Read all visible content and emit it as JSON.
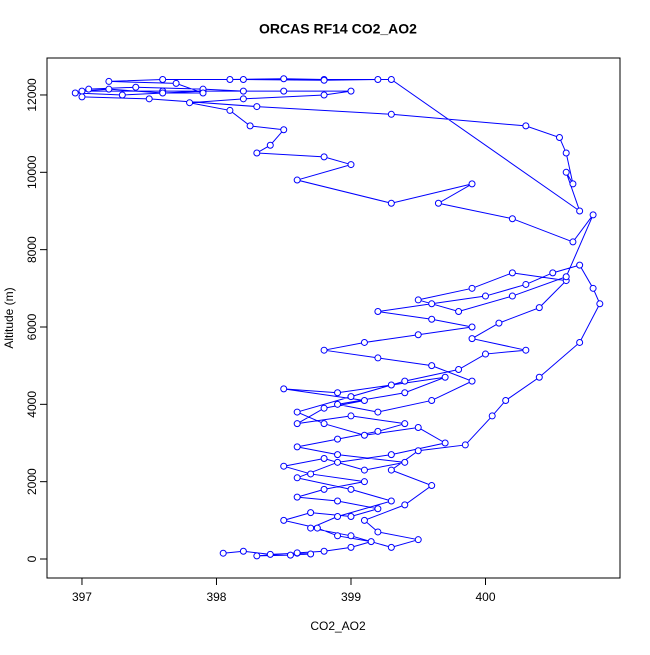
{
  "chart_data": {
    "type": "line",
    "title": "ORCAS RF14 CO2_AO2",
    "x_label": "CO2_AO2",
    "y_label": "Altitude (m)",
    "markers": "circle",
    "color": "#0000ff",
    "x": [
      398.05,
      398.2,
      398.4,
      398.6,
      398.7,
      398.55,
      398.3,
      398.6,
      398.8,
      399.0,
      399.15,
      398.9,
      398.75,
      398.5,
      398.7,
      399.0,
      399.2,
      398.9,
      398.6,
      398.8,
      399.1,
      398.7,
      398.5,
      398.8,
      399.1,
      399.4,
      398.9,
      398.6,
      398.9,
      399.2,
      399.4,
      399.0,
      398.6,
      398.8,
      399.1,
      398.5,
      398.9,
      399.3,
      399.7,
      399.4,
      398.9,
      399.2,
      399.6,
      399.9,
      399.6,
      399.2,
      398.8,
      399.1,
      399.5,
      399.9,
      399.6,
      399.2,
      399.6,
      400.0,
      400.3,
      400.5,
      400.7,
      400.8,
      400.85,
      400.7,
      400.4,
      400.15,
      400.05,
      399.85,
      399.5,
      399.3,
      399.6,
      399.4,
      399.1,
      399.2,
      399.5,
      399.3,
      399.0,
      398.7,
      398.9,
      399.3,
      399.0,
      398.6,
      398.9,
      399.3,
      399.7,
      399.5,
      399.1,
      398.8,
      398.6,
      399.0,
      399.4,
      399.8,
      400.0,
      400.3,
      399.9,
      400.1,
      400.4,
      400.6,
      400.2,
      399.9,
      399.5,
      399.8,
      400.2,
      400.6,
      400.8,
      400.65,
      400.2,
      399.65,
      399.9,
      399.3,
      398.6,
      399.0,
      398.8,
      398.3,
      398.4,
      398.5,
      398.25,
      398.1,
      397.8,
      398.2,
      398.8,
      399.0,
      398.5,
      397.9,
      397.3,
      396.95,
      397.05,
      397.4,
      397.9,
      398.2,
      397.6,
      397.0,
      397.2,
      397.6,
      397.9,
      397.7,
      397.2,
      397.6,
      398.1,
      398.5,
      398.8,
      399.2,
      398.8,
      398.2,
      399.3,
      400.7,
      400.6,
      400.65,
      400.6,
      400.55,
      400.3,
      399.3,
      398.3,
      397.5,
      397.0
    ],
    "series": [
      {
        "name": "CO2_AO2",
        "color": "#0000ff",
        "values": [
          150,
          200,
          120,
          150,
          130,
          100,
          80,
          160,
          200,
          300,
          450,
          600,
          800,
          1000,
          1200,
          1100,
          1300,
          1500,
          1600,
          1800,
          2000,
          2200,
          2400,
          2600,
          2300,
          2500,
          2700,
          2900,
          3100,
          3300,
          3500,
          3700,
          3500,
          3900,
          4100,
          4400,
          4300,
          4500,
          4700,
          4300,
          4000,
          3800,
          4100,
          4600,
          5000,
          5200,
          5400,
          5600,
          5800,
          6000,
          6200,
          6400,
          6600,
          6800,
          7100,
          7400,
          7600,
          7000,
          6600,
          5600,
          4700,
          4100,
          3700,
          2950,
          2800,
          2300,
          1900,
          1400,
          1000,
          700,
          500,
          300,
          600,
          800,
          1100,
          1500,
          1800,
          2100,
          2500,
          2700,
          3000,
          3400,
          3200,
          3500,
          3800,
          4200,
          4600,
          4900,
          5300,
          5400,
          5700,
          6100,
          6500,
          7200,
          7400,
          7000,
          6700,
          6400,
          6800,
          7300,
          8900,
          8200,
          8800,
          9200,
          9700,
          9200,
          9800,
          10200,
          10400,
          10500,
          10700,
          11100,
          11200,
          11600,
          11800,
          11900,
          12000,
          12100,
          12100,
          12100,
          12000,
          12050,
          12150,
          12200,
          12150,
          12100,
          12100,
          12100,
          12150,
          12050,
          12050,
          12300,
          12350,
          12400,
          12400,
          12420,
          12400,
          12400,
          12380,
          12400,
          12400,
          9000,
          10000,
          9700,
          10500,
          10900,
          11200,
          11500,
          11700,
          11900,
          11950
        ]
      }
    ],
    "xlim": [
      396.74,
      401.0
    ],
    "ylim": [
      -491,
      12956
    ],
    "xticks": [
      397,
      398,
      399,
      400
    ],
    "yticks": [
      0,
      2000,
      4000,
      6000,
      8000,
      10000,
      12000
    ]
  }
}
